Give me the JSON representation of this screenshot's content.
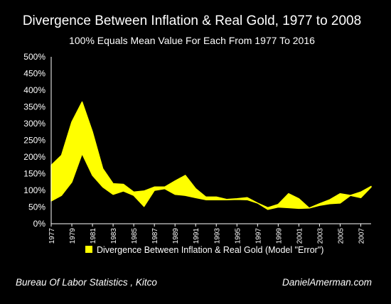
{
  "title": "Divergence Between Inflation & Real Gold, 1977 to 2008",
  "subtitle": "100% Equals Mean Value For Each From 1977 To 2016",
  "footer": {
    "source": "Bureau Of Labor Statistics , Kitco",
    "credit": "DanielAmerman.com"
  },
  "colors": {
    "background": "#000000",
    "fill": "#ffff00",
    "text": "#ffffff",
    "axis": "#ffffff"
  },
  "chart_data": {
    "type": "area",
    "legend": {
      "label": "Divergence Between Inflation & Real Gold (Model \"Error\")",
      "position": "bottom"
    },
    "grid": false,
    "ylim": [
      0,
      500
    ],
    "y_ticks": [
      "0%",
      "50%",
      "100%",
      "150%",
      "200%",
      "250%",
      "300%",
      "350%",
      "400%",
      "450%",
      "500%"
    ],
    "y_tick_values": [
      0,
      50,
      100,
      150,
      200,
      250,
      300,
      350,
      400,
      450,
      500
    ],
    "x_tick_labels": [
      "1977",
      "1979",
      "1981",
      "1983",
      "1985",
      "1987",
      "1989",
      "1991",
      "1993",
      "1995",
      "1997",
      "1999",
      "2001",
      "2003",
      "2005",
      "2007"
    ],
    "x": [
      1977,
      1978,
      1979,
      1980,
      1981,
      1982,
      1983,
      1984,
      1985,
      1986,
      1987,
      1988,
      1989,
      1990,
      1991,
      1992,
      1993,
      1994,
      1995,
      1996,
      1997,
      1998,
      1999,
      2000,
      2001,
      2002,
      2003,
      2004,
      2005,
      2006,
      2007,
      2008
    ],
    "series": [
      {
        "role": "upper",
        "values": [
          175,
          205,
          305,
          365,
          275,
          165,
          120,
          118,
          95,
          98,
          110,
          110,
          128,
          145,
          105,
          80,
          80,
          73,
          75,
          78,
          62,
          48,
          58,
          90,
          75,
          47,
          60,
          72,
          90,
          85,
          95,
          112
        ]
      },
      {
        "role": "lower",
        "values": [
          68,
          85,
          125,
          210,
          145,
          110,
          88,
          98,
          85,
          52,
          100,
          105,
          88,
          85,
          78,
          72,
          72,
          72,
          73,
          72,
          62,
          43,
          50,
          48,
          46,
          47,
          55,
          60,
          62,
          85,
          78,
          110
        ]
      }
    ]
  }
}
